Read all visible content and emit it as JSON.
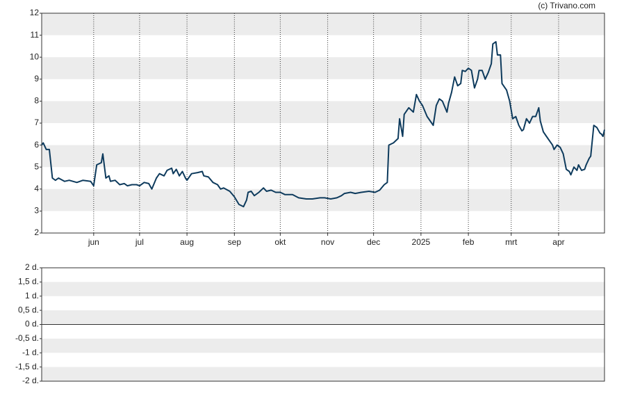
{
  "source": "(c) Trivano.com",
  "chart_data": [
    {
      "type": "line",
      "color": "#0d3a5c",
      "grid": true,
      "x": [
        0,
        1,
        3,
        5,
        7,
        9,
        11,
        15,
        18,
        23,
        27,
        32,
        34,
        36,
        39,
        40,
        42,
        44,
        45,
        48,
        51,
        54,
        56,
        59,
        62,
        64,
        67,
        70,
        72,
        75,
        77,
        80,
        82,
        85,
        86,
        88,
        90,
        92,
        94,
        95,
        98,
        102,
        105,
        106,
        109,
        112,
        115,
        117,
        119,
        123,
        126,
        129,
        132,
        134,
        135,
        137,
        139,
        142,
        145,
        147,
        150,
        153,
        156,
        159,
        164,
        168,
        173,
        177,
        182,
        185,
        189,
        193,
        196,
        198,
        202,
        205,
        209,
        214,
        218,
        221,
        224,
        226,
        227,
        230,
        233,
        234,
        236,
        237,
        240,
        243,
        245,
        247,
        249,
        252,
        255,
        256,
        258,
        260,
        262,
        265,
        266,
        268,
        270,
        272,
        274,
        275,
        277,
        279,
        281,
        283,
        285,
        286,
        288,
        290,
        292,
        294,
        295,
        297,
        298,
        300,
        301,
        304,
        306,
        308,
        310,
        312,
        314,
        315,
        317,
        319,
        321,
        323,
        325,
        326,
        328,
        330,
        332,
        334,
        335,
        337,
        339,
        341,
        343,
        345,
        346,
        348,
        350,
        351,
        353,
        355,
        356,
        358,
        359,
        361,
        363,
        365,
        366,
        367,
        368
      ],
      "values": [
        6.0,
        6.1,
        5.8,
        5.8,
        4.5,
        4.4,
        4.5,
        4.35,
        4.4,
        4.3,
        4.4,
        4.35,
        4.15,
        5.1,
        5.2,
        5.6,
        4.5,
        4.6,
        4.35,
        4.4,
        4.2,
        4.25,
        4.15,
        4.2,
        4.2,
        4.15,
        4.3,
        4.25,
        4.0,
        4.5,
        4.7,
        4.6,
        4.85,
        4.95,
        4.7,
        4.9,
        4.6,
        4.8,
        4.5,
        4.4,
        4.7,
        4.75,
        4.8,
        4.6,
        4.55,
        4.3,
        4.2,
        4.0,
        4.05,
        3.9,
        3.65,
        3.3,
        3.2,
        3.5,
        3.85,
        3.9,
        3.7,
        3.85,
        4.05,
        3.9,
        3.95,
        3.85,
        3.85,
        3.75,
        3.75,
        3.6,
        3.55,
        3.55,
        3.6,
        3.6,
        3.55,
        3.6,
        3.7,
        3.8,
        3.85,
        3.8,
        3.85,
        3.9,
        3.85,
        3.95,
        4.2,
        4.3,
        6.0,
        6.1,
        6.3,
        7.2,
        6.4,
        7.4,
        7.7,
        7.5,
        8.3,
        8.0,
        7.8,
        7.3,
        7.0,
        6.9,
        7.8,
        8.1,
        8.0,
        7.5,
        7.9,
        8.4,
        9.1,
        8.7,
        8.8,
        9.4,
        9.35,
        9.5,
        9.4,
        8.6,
        9.0,
        9.4,
        9.4,
        9.0,
        9.3,
        9.7,
        10.6,
        10.7,
        10.1,
        10.1,
        8.8,
        8.5,
        8.0,
        7.2,
        7.3,
        6.9,
        6.65,
        6.7,
        7.2,
        7.0,
        7.3,
        7.3,
        7.7,
        7.1,
        6.6,
        6.4,
        6.2,
        6.0,
        5.8,
        6.0,
        5.9,
        5.6,
        4.9,
        4.8,
        4.65,
        5.0,
        4.85,
        5.1,
        4.85,
        4.9,
        5.1,
        5.4,
        5.5,
        6.9,
        6.8,
        6.55,
        6.5,
        6.4,
        6.7
      ],
      "xlim": [
        0,
        368
      ],
      "xticks": [
        {
          "value": 34,
          "label": "jun"
        },
        {
          "value": 64,
          "label": "jul"
        },
        {
          "value": 95,
          "label": "aug"
        },
        {
          "value": 126,
          "label": "sep"
        },
        {
          "value": 156,
          "label": "okt"
        },
        {
          "value": 187,
          "label": "nov"
        },
        {
          "value": 217,
          "label": "dec"
        },
        {
          "value": 248,
          "label": "2025"
        },
        {
          "value": 279,
          "label": "feb"
        },
        {
          "value": 307,
          "label": "mrt"
        },
        {
          "value": 338,
          "label": "apr"
        }
      ],
      "ylim": [
        2,
        12
      ],
      "yticks": [
        2,
        3,
        4,
        5,
        6,
        7,
        8,
        9,
        10,
        11,
        12
      ]
    },
    {
      "type": "bar",
      "grid": true,
      "ylim": [
        -2,
        2
      ],
      "yticks": [
        {
          "value": 2,
          "label": "2 d."
        },
        {
          "value": 1.5,
          "label": "1,5 d."
        },
        {
          "value": 1,
          "label": "1 d."
        },
        {
          "value": 0.5,
          "label": "0,5 d."
        },
        {
          "value": 0,
          "label": "0 d."
        },
        {
          "value": -0.5,
          "label": "-0,5 d."
        },
        {
          "value": -1,
          "label": "-1 d."
        },
        {
          "value": -1.5,
          "label": "-1,5 d."
        },
        {
          "value": -2,
          "label": "-2 d."
        }
      ]
    }
  ]
}
